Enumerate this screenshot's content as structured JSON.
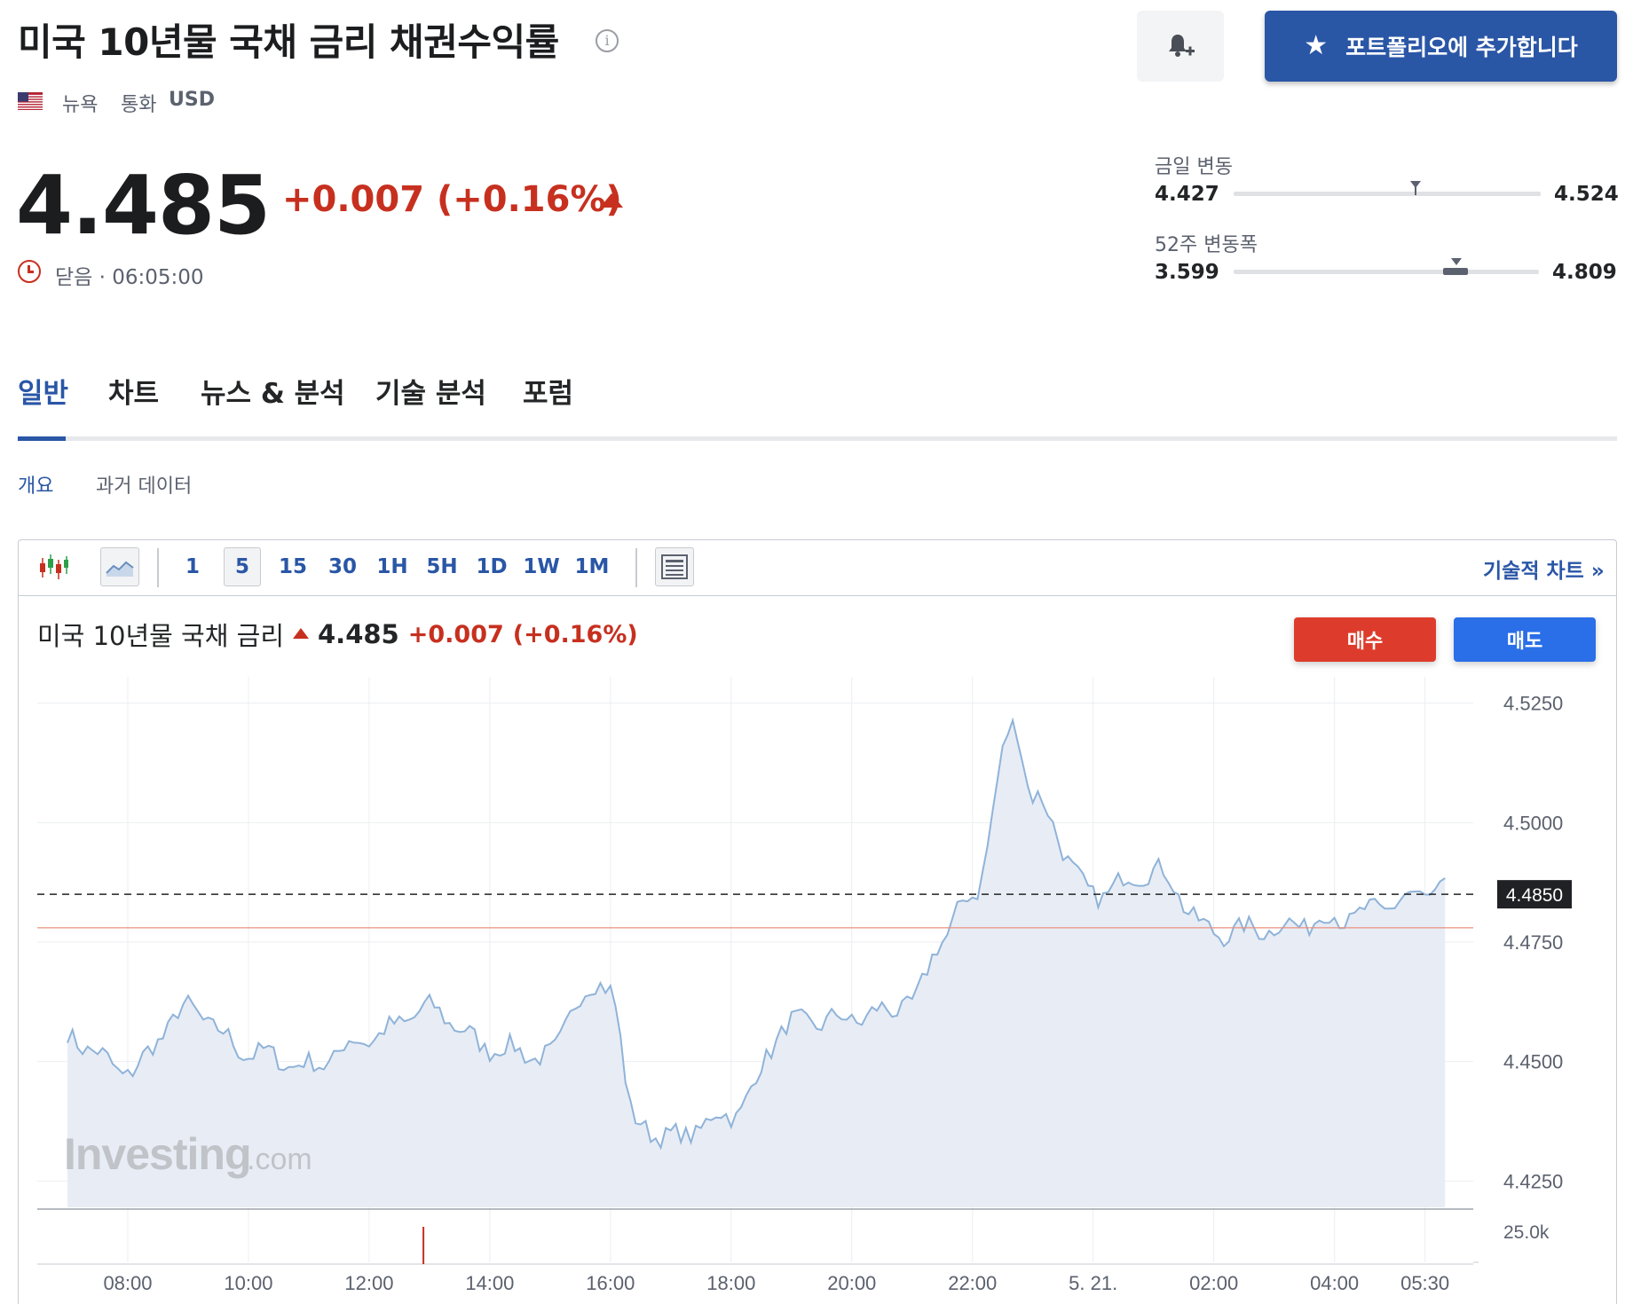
{
  "header": {
    "title": "미국 10년물 국채 금리 채권수익률",
    "info_icon": "info-icon",
    "exchange": "뉴욕",
    "currency_label": "통화",
    "currency": "USD",
    "bell_icon": "bell-plus-icon",
    "add_portfolio_label": "포트폴리오에 추가합니다",
    "star_icon": "star-icon"
  },
  "quote": {
    "price": "4.485",
    "change": "+0.007 (+0.16%)",
    "status": "닫음 · 06:05:00",
    "direction": "up",
    "color_up": "#c7301f"
  },
  "ranges": {
    "daily": {
      "label": "금일 변동",
      "low": "4.427",
      "high": "4.524",
      "current": 4.485
    },
    "week52": {
      "label": "52주 변동폭",
      "low": "3.599",
      "high": "4.809",
      "current": 4.485
    }
  },
  "tabs": [
    {
      "label": "일반",
      "active": true
    },
    {
      "label": "차트",
      "active": false
    },
    {
      "label": "뉴스 & 분석",
      "active": false
    },
    {
      "label": "기술 분석",
      "active": false
    },
    {
      "label": "포럼",
      "active": false
    }
  ],
  "subtabs": [
    {
      "label": "개요",
      "active": true
    },
    {
      "label": "과거 데이터",
      "active": false
    }
  ],
  "toolbar": {
    "intervals": [
      "1",
      "5",
      "15",
      "30",
      "1H",
      "5H",
      "1D",
      "1W",
      "1M"
    ],
    "selected_interval": "5",
    "tech_chart_link": "기술적 차트 »"
  },
  "chart_header": {
    "name": "미국 10년물 국채 금리",
    "price": "4.485",
    "change": "+0.007",
    "change_pct": "(+0.16%)"
  },
  "trade": {
    "buy_label": "매수",
    "sell_label": "매도"
  },
  "watermark": {
    "brand": "Investing",
    "suffix": ".com"
  },
  "chart_data": {
    "type": "area",
    "x_ticks": [
      "08:00",
      "10:00",
      "12:00",
      "14:00",
      "16:00",
      "18:00",
      "20:00",
      "22:00",
      "5. 21.",
      "02:00",
      "04:00",
      "05:30"
    ],
    "y_ticks": [
      "4.5250",
      "4.5000",
      "4.4750",
      "4.4500",
      "4.4250"
    ],
    "ylim": [
      4.4195,
      4.5305
    ],
    "current_label": "4.4850",
    "current_value": 4.485,
    "prev_close": 4.478,
    "volume_label": "25.0k",
    "line_color": "#8fb3d9",
    "fill_color": "#e8edf5",
    "prev_close_color": "#e8917f",
    "times": [
      7.0,
      8.0,
      9.0,
      10.0,
      11.0,
      12.0,
      13.0,
      14.0,
      15.0,
      15.5,
      16.0,
      16.4,
      17.0,
      18.0,
      19.0,
      20.0,
      21.0,
      21.5,
      22.0,
      22.7,
      23.0,
      24.0,
      25.0,
      26.0,
      27.0,
      28.0,
      29.9
    ],
    "values": [
      4.455,
      4.448,
      4.461,
      4.452,
      4.449,
      4.455,
      4.461,
      4.453,
      4.451,
      4.464,
      4.466,
      4.437,
      4.434,
      4.439,
      4.458,
      4.459,
      4.462,
      4.476,
      4.485,
      4.521,
      4.505,
      4.485,
      4.49,
      4.477,
      4.478,
      4.48,
      4.486
    ],
    "volume_time": 12.9
  }
}
